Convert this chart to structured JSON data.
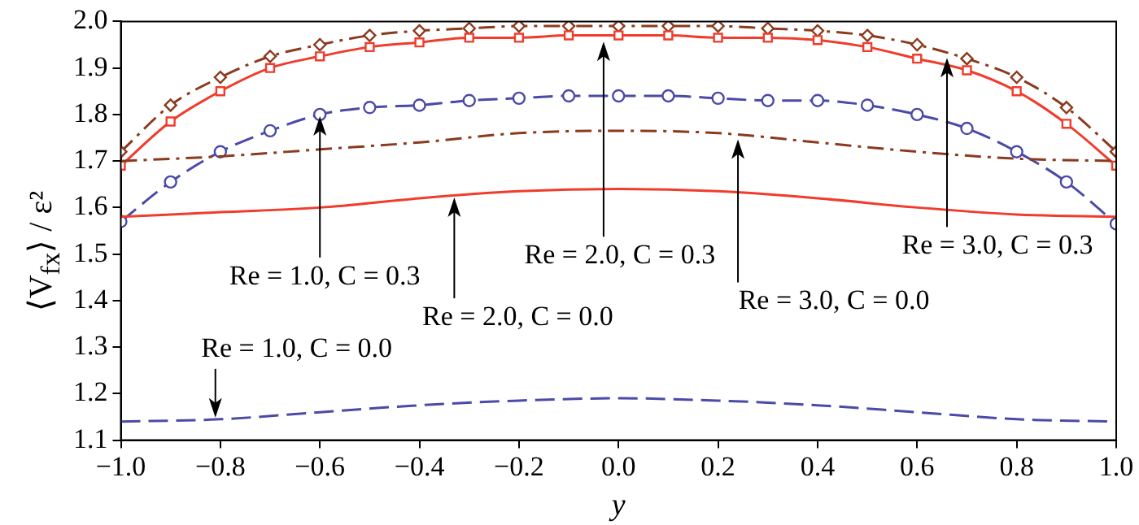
{
  "chart_data": {
    "type": "line",
    "xlabel": "y",
    "ylabel": "⟨V$_{fx}$⟩ / ε²",
    "x": [
      -1.0,
      -0.9,
      -0.8,
      -0.7,
      -0.6,
      -0.5,
      -0.4,
      -0.3,
      -0.2,
      -0.1,
      0.0,
      0.1,
      0.2,
      0.3,
      0.4,
      0.5,
      0.6,
      0.7,
      0.8,
      0.9,
      1.0
    ],
    "series": [
      {
        "color": "#4a4aa8",
        "line_style": "dashed",
        "marker": "none",
        "x": [
          -1.0,
          -0.8,
          -0.6,
          -0.4,
          -0.2,
          0.0,
          0.2,
          0.4,
          0.6,
          0.8,
          1.0
        ],
        "values": [
          1.14,
          1.145,
          1.16,
          1.175,
          1.185,
          1.19,
          1.185,
          1.175,
          1.16,
          1.145,
          1.14
        ]
      },
      {
        "color": "#f03c2c",
        "line_style": "solid",
        "marker": "none",
        "x": [
          -1.0,
          -0.8,
          -0.6,
          -0.4,
          -0.2,
          0.0,
          0.2,
          0.4,
          0.6,
          0.8,
          1.0
        ],
        "values": [
          1.58,
          1.59,
          1.6,
          1.62,
          1.635,
          1.64,
          1.635,
          1.62,
          1.6,
          1.585,
          1.58
        ]
      },
      {
        "color": "#8b3a1e",
        "line_style": "dashdot",
        "marker": "none",
        "x": [
          -1.0,
          -0.8,
          -0.6,
          -0.4,
          -0.2,
          0.0,
          0.2,
          0.4,
          0.6,
          0.8,
          1.0
        ],
        "values": [
          1.7,
          1.71,
          1.725,
          1.74,
          1.76,
          1.765,
          1.76,
          1.74,
          1.72,
          1.705,
          1.7
        ]
      },
      {
        "color": "#4a4aa8",
        "line_style": "dashed",
        "marker": "circle",
        "values": [
          1.57,
          1.655,
          1.72,
          1.765,
          1.8,
          1.815,
          1.82,
          1.83,
          1.835,
          1.84,
          1.84,
          1.84,
          1.835,
          1.83,
          1.83,
          1.82,
          1.8,
          1.77,
          1.72,
          1.655,
          1.565
        ]
      },
      {
        "color": "#f03c2c",
        "line_style": "solid",
        "marker": "square",
        "values": [
          1.69,
          1.785,
          1.85,
          1.9,
          1.925,
          1.945,
          1.955,
          1.965,
          1.965,
          1.97,
          1.97,
          1.97,
          1.965,
          1.965,
          1.96,
          1.945,
          1.92,
          1.895,
          1.85,
          1.78,
          1.69
        ]
      },
      {
        "color": "#8b3a1e",
        "line_style": "dashdot",
        "marker": "diamond",
        "values": [
          1.72,
          1.82,
          1.88,
          1.925,
          1.95,
          1.97,
          1.98,
          1.985,
          1.99,
          1.99,
          1.99,
          1.99,
          1.99,
          1.985,
          1.98,
          1.97,
          1.95,
          1.92,
          1.88,
          1.815,
          1.72
        ]
      }
    ],
    "xlim": [
      -1.0,
      1.0
    ],
    "ylim": [
      1.1,
      2.0
    ],
    "xticks": [
      {
        "value": -1.0,
        "label": "−1.0"
      },
      {
        "value": -0.8,
        "label": "−0.8"
      },
      {
        "value": -0.6,
        "label": "−0.6"
      },
      {
        "value": -0.4,
        "label": "−0.4"
      },
      {
        "value": -0.2,
        "label": "−0.2"
      },
      {
        "value": 0,
        "label": "0.0"
      },
      {
        "value": 0.2,
        "label": "0.2"
      },
      {
        "value": 0.4,
        "label": "0.4"
      },
      {
        "value": 0.6,
        "label": "0.6"
      },
      {
        "value": 0.8,
        "label": "0.8"
      },
      {
        "value": 1.0,
        "label": "1.0"
      }
    ],
    "yticks": [
      1.1,
      1.2,
      1.3,
      1.4,
      1.5,
      1.6,
      1.7,
      1.8,
      1.9,
      {
        "value": 2.0,
        "label": "2.0"
      }
    ],
    "grid": false,
    "legend": false,
    "annotations": [
      {
        "text": "Re = 1.0, C = 0.3",
        "x": -0.6,
        "y": 1.8
      },
      {
        "text": "Re = 2.0, C = 0.3",
        "x": -0.03,
        "y": 1.96
      },
      {
        "text": "Re = 3.0, C = 0.3",
        "x": 0.66,
        "y": 1.925
      },
      {
        "text": "Re = 2.0, C = 0.0",
        "x": -0.33,
        "y": 1.625
      },
      {
        "text": "Re = 3.0, C = 0.0",
        "x": 0.24,
        "y": 1.75
      },
      {
        "text": "Re = 1.0, C = 0.0",
        "x": -0.81,
        "y": 1.145
      }
    ]
  }
}
